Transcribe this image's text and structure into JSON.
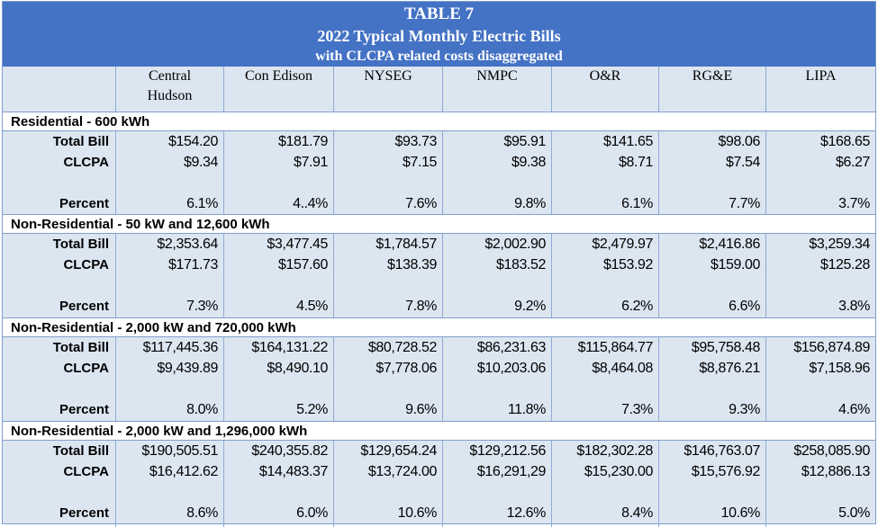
{
  "title": {
    "line1": "TABLE 7",
    "line2": "2022 Typical Monthly Electric Bills",
    "line3": "with CLCPA related costs disaggregated"
  },
  "columns": [
    {
      "line1": "Central",
      "line2": "Hudson"
    },
    {
      "line1": "Con Edison",
      "line2": ""
    },
    {
      "line1": "NYSEG",
      "line2": ""
    },
    {
      "line1": "NMPC",
      "line2": ""
    },
    {
      "line1": "O&R",
      "line2": ""
    },
    {
      "line1": "RG&E",
      "line2": ""
    },
    {
      "line1": "LIPA",
      "line2": ""
    }
  ],
  "sections": [
    {
      "heading": "Residential  -  600 kWh",
      "rows": [
        {
          "label": "Total Bill",
          "values": [
            "$154.20",
            "$181.79",
            "$93.73",
            "$95.91",
            "$141.65",
            "$98.06",
            "$168.65"
          ]
        },
        {
          "label": "CLCPA",
          "values": [
            "$9.34",
            "$7.91",
            "$7.15",
            "$9.38",
            "$8.71",
            "$7.54",
            "$6.27"
          ]
        },
        {
          "label": "Percent",
          "values": [
            "6.1%",
            "4..4%",
            "7.6%",
            "9.8%",
            "6.1%",
            "7.7%",
            "3.7%"
          ]
        }
      ]
    },
    {
      "heading": "Non-Residential  -  50 kW and 12,600 kWh",
      "rows": [
        {
          "label": "Total Bill",
          "values": [
            "$2,353.64",
            "$3,477.45",
            "$1,784.57",
            "$2,002.90",
            "$2,479.97",
            "$2,416.86",
            "$3,259.34"
          ]
        },
        {
          "label": "CLCPA",
          "values": [
            "$171.73",
            "$157.60",
            "$138.39",
            "$183.52",
            "$153.92",
            "$159.00",
            "$125.28"
          ]
        },
        {
          "label": "Percent",
          "values": [
            "7.3%",
            "4.5%",
            "7.8%",
            "9.2%",
            "6.2%",
            "6.6%",
            "3.8%"
          ]
        }
      ]
    },
    {
      "heading": "Non-Residential  -  2,000 kW and 720,000 kWh",
      "rows": [
        {
          "label": "Total Bill",
          "values": [
            "$117,445.36",
            "$164,131.22",
            "$80,728.52",
            "$86,231.63",
            "$115,864.77",
            "$95,758.48",
            "$156,874.89"
          ]
        },
        {
          "label": "CLCPA",
          "values": [
            "$9,439.89",
            "$8,490.10",
            "$7,778.06",
            "$10,203.06",
            "$8,464.08",
            "$8,876.21",
            "$7,158.96"
          ]
        },
        {
          "label": "Percent",
          "values": [
            "8.0%",
            "5.2%",
            "9.6%",
            "11.8%",
            "7.3%",
            "9.3%",
            "4.6%"
          ]
        }
      ]
    },
    {
      "heading": "Non-Residential  -  2,000 kW and 1,296,000 kWh",
      "rows": [
        {
          "label": "Total Bill",
          "values": [
            "$190,505.51",
            "$240,355.82",
            "$129,654.24",
            "$129,212.56",
            "$182,302.28",
            "$146,763.07",
            "$258,085.90"
          ]
        },
        {
          "label": "CLCPA",
          "values": [
            "$16,412.62",
            "$14,483.37",
            "$13,724.00",
            "$16,291,29",
            "$15,230.00",
            "$15,576.92",
            "$12,886.13"
          ]
        },
        {
          "label": "Percent",
          "values": [
            "8.6%",
            "6.0%",
            "10.6%",
            "12.6%",
            "8.4%",
            "10.6%",
            "5.0%"
          ]
        }
      ]
    }
  ]
}
